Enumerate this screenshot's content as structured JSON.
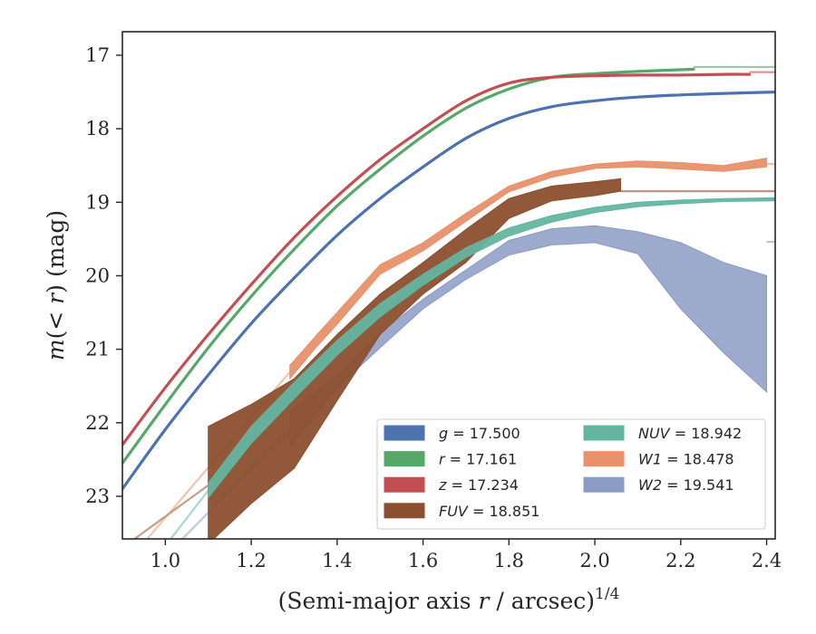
{
  "chart_data": {
    "type": "line",
    "title": "",
    "xlabel_main": "(Semi-major axis ",
    "xlabel_var": "r",
    "xlabel_tail": " / arcsec)",
    "xlabel_exp": "1/4",
    "ylabel_m": "m",
    "ylabel_paren": "(< ",
    "ylabel_r": "r",
    "ylabel_tail": ") (mag)",
    "xlim": [
      0.9,
      2.42
    ],
    "ylim": [
      23.58,
      16.68
    ],
    "y_inverted": true,
    "xticks": [
      1.0,
      1.2,
      1.4,
      1.6,
      1.8,
      2.0,
      2.2,
      2.4
    ],
    "xtick_labels": [
      "1.0",
      "1.2",
      "1.4",
      "1.6",
      "1.8",
      "2.0",
      "2.2",
      "2.4"
    ],
    "yticks": [
      17,
      18,
      19,
      20,
      21,
      22,
      23
    ],
    "ytick_labels": [
      "17",
      "18",
      "19",
      "20",
      "21",
      "22",
      "23"
    ],
    "grid": false,
    "legend_placement": "lower-right",
    "legend_ncol": 2,
    "series": [
      {
        "name": "g",
        "label": "g = 17.500",
        "total_mag": 17.5,
        "color": "#4c72b0",
        "kind": "line",
        "x": [
          0.9,
          1.0,
          1.1,
          1.2,
          1.3,
          1.4,
          1.5,
          1.6,
          1.7,
          1.8,
          1.9,
          2.0,
          2.1,
          2.2,
          2.3,
          2.42
        ],
        "y": [
          22.9,
          22.09,
          21.35,
          20.65,
          20.03,
          19.45,
          18.95,
          18.52,
          18.13,
          17.86,
          17.7,
          17.62,
          17.57,
          17.54,
          17.52,
          17.5
        ]
      },
      {
        "name": "r",
        "label": "r = 17.161",
        "total_mag": 17.161,
        "color": "#55a868",
        "kind": "line",
        "extension_to": [
          2.42,
          17.16
        ],
        "x": [
          0.9,
          1.0,
          1.1,
          1.2,
          1.3,
          1.4,
          1.5,
          1.6,
          1.7,
          1.8,
          1.9,
          2.0,
          2.1,
          2.23
        ],
        "y": [
          22.55,
          21.75,
          20.98,
          20.28,
          19.64,
          19.05,
          18.55,
          18.1,
          17.72,
          17.46,
          17.3,
          17.25,
          17.22,
          17.19
        ]
      },
      {
        "name": "z",
        "label": "z = 17.234",
        "total_mag": 17.234,
        "color": "#c44e52",
        "kind": "line",
        "extension_to": [
          2.42,
          17.23
        ],
        "x": [
          0.9,
          1.0,
          1.1,
          1.2,
          1.3,
          1.4,
          1.5,
          1.6,
          1.7,
          1.8,
          1.9,
          2.0,
          2.1,
          2.2,
          2.3,
          2.36
        ],
        "y": [
          22.3,
          21.52,
          20.8,
          20.12,
          19.48,
          18.92,
          18.42,
          18.0,
          17.62,
          17.38,
          17.3,
          17.28,
          17.27,
          17.27,
          17.26,
          17.26
        ]
      },
      {
        "name": "FUV",
        "label": "FUV = 18.851",
        "total_mag": 18.851,
        "color": "#8c4f2f",
        "kind": "band",
        "extension_to": [
          2.42,
          18.85
        ],
        "x": [
          1.1,
          1.2,
          1.3,
          1.4,
          1.5,
          1.6,
          1.7,
          1.8,
          1.9,
          2.0,
          2.06
        ],
        "y_low": [
          22.05,
          21.75,
          21.4,
          20.8,
          20.25,
          19.82,
          19.37,
          18.95,
          18.78,
          18.72,
          18.68
        ],
        "y_high": [
          23.65,
          23.1,
          22.62,
          21.7,
          20.8,
          20.25,
          19.82,
          19.22,
          18.98,
          18.91,
          18.85
        ]
      },
      {
        "name": "NUV",
        "label": "NUV = 18.942",
        "total_mag": 18.942,
        "color": "#64b5a0",
        "kind": "band",
        "x": [
          1.1,
          1.2,
          1.3,
          1.4,
          1.5,
          1.6,
          1.7,
          1.8,
          1.9,
          2.0,
          2.1,
          2.2,
          2.3,
          2.42
        ],
        "y_low": [
          22.82,
          22.05,
          21.45,
          20.88,
          20.38,
          19.98,
          19.62,
          19.35,
          19.18,
          19.07,
          19.0,
          18.97,
          18.95,
          18.94
        ],
        "y_high": [
          23.02,
          22.28,
          21.67,
          21.08,
          20.56,
          20.13,
          19.75,
          19.46,
          19.27,
          19.14,
          19.06,
          19.02,
          18.99,
          18.98
        ]
      },
      {
        "name": "W1",
        "label": "W1 = 18.478",
        "total_mag": 18.478,
        "color": "#e8916a",
        "kind": "band",
        "extension_to": [
          2.42,
          18.48
        ],
        "x": [
          1.29,
          1.35,
          1.4,
          1.5,
          1.6,
          1.7,
          1.8,
          1.9,
          2.0,
          2.1,
          2.2,
          2.3,
          2.4
        ],
        "y_low": [
          21.22,
          20.82,
          20.5,
          19.85,
          19.55,
          19.15,
          18.78,
          18.58,
          18.48,
          18.44,
          18.46,
          18.5,
          18.4
        ],
        "y_high": [
          21.4,
          20.98,
          20.66,
          19.98,
          19.66,
          19.26,
          18.86,
          18.66,
          18.54,
          18.52,
          18.55,
          18.58,
          18.52
        ]
      },
      {
        "name": "W2",
        "label": "W2 = 19.541",
        "total_mag": 19.541,
        "color": "#8a9bc4",
        "kind": "band",
        "extension_to": [
          2.42,
          19.54
        ],
        "x": [
          1.29,
          1.4,
          1.5,
          1.6,
          1.7,
          1.8,
          1.9,
          2.0,
          2.1,
          2.2,
          2.3,
          2.4
        ],
        "y_low": [
          21.85,
          21.35,
          20.78,
          20.32,
          19.92,
          19.52,
          19.36,
          19.32,
          19.4,
          19.55,
          19.82,
          20.0
        ],
        "y_high": [
          22.33,
          21.52,
          20.98,
          20.45,
          20.05,
          19.72,
          19.58,
          19.55,
          19.7,
          20.45,
          21.05,
          21.58
        ]
      }
    ],
    "legend_left": [
      {
        "var": "g",
        "eq": " = 17.500",
        "color": "#4c72b0"
      },
      {
        "var": "r",
        "eq": " = 17.161",
        "color": "#55a868"
      },
      {
        "var": "z",
        "eq": " = 17.234",
        "color": "#c44e52"
      },
      {
        "var": "FUV",
        "eq": " = 18.851",
        "color": "#8c4f2f"
      }
    ],
    "legend_right": [
      {
        "var": "NUV",
        "eq": " = 18.942",
        "color": "#64b5a0"
      },
      {
        "var": "W1",
        "eq": " = 18.478",
        "color": "#e8916a"
      },
      {
        "var": "W2",
        "eq": " = 19.541",
        "color": "#8a9bc4"
      }
    ]
  }
}
